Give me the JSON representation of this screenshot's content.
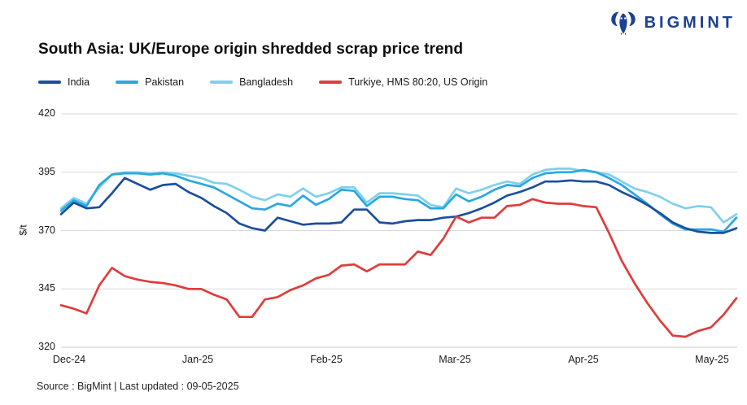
{
  "header": {
    "logo_text": "BIGMINT",
    "title": "South Asia: UK/Europe origin shredded scrap price trend"
  },
  "footer": {
    "source_text": "Source : BigMint | Last updated : 09-05-2025"
  },
  "colors": {
    "brand_navy": "#1d4094",
    "grid": "#d9d9d9",
    "axis_line": "#c9c9c9",
    "axis_text": "#1a1a1a",
    "title_text": "#0d0d0d"
  },
  "chart_data": {
    "type": "line",
    "title": "South Asia: UK/Europe origin shredded scrap price trend",
    "xlabel": "",
    "ylabel": "$/t",
    "ylim": [
      320,
      420
    ],
    "yticks": [
      420,
      395,
      370,
      345,
      320
    ],
    "xticks": [
      "Dec-24",
      "Jan-25",
      "Feb-25",
      "Mar-25",
      "Apr-25",
      "May-25"
    ],
    "grid": "horizontal",
    "legend_position": "top-left",
    "x_note": "daily prices Dec 2024 - 09 May 2025, sampled ~every 3 days",
    "series": [
      {
        "name": "Bangladesh",
        "color": "#7fd0ec",
        "values": [
          379.5,
          384,
          381.5,
          388.5,
          394,
          395,
          395,
          394.5,
          395,
          394.5,
          393.5,
          392.5,
          390.5,
          390,
          387.5,
          384.5,
          383,
          385.5,
          384.5,
          388,
          384.5,
          386,
          388.5,
          388.5,
          382,
          386,
          386,
          385.5,
          385,
          381,
          380,
          388,
          386,
          387.5,
          389.5,
          391,
          390,
          394,
          396,
          396.5,
          396.5,
          395.5,
          395,
          394,
          391,
          388,
          386.5,
          384.5,
          381.5,
          379.5,
          380.5,
          380,
          373.5,
          377
        ]
      },
      {
        "name": "Pakistan",
        "color": "#29a8e0",
        "values": [
          378.5,
          383,
          380.5,
          389.5,
          394,
          394.5,
          394.5,
          394,
          394.5,
          393.5,
          391.5,
          390,
          388.5,
          385.5,
          382.5,
          379.5,
          379,
          381.5,
          380.5,
          385,
          381,
          383.5,
          387.5,
          387,
          380.5,
          384.5,
          384.5,
          383.5,
          383,
          379.5,
          379.5,
          385.5,
          382.5,
          384.5,
          387.5,
          389.5,
          389,
          392.5,
          394.5,
          395,
          395,
          396,
          395,
          392.5,
          389.5,
          385.5,
          381.5,
          377,
          373,
          370.5,
          370.5,
          370.5,
          369.5,
          375.5
        ]
      },
      {
        "name": "India",
        "color": "#1b4f9c",
        "values": [
          377,
          382,
          379.5,
          380,
          386,
          392.5,
          390,
          387.5,
          389.5,
          390,
          386.5,
          384,
          380.5,
          377.5,
          373,
          371,
          370,
          375.5,
          374,
          372.5,
          373,
          373,
          373.5,
          379,
          379,
          373.5,
          373,
          374,
          374.5,
          374.5,
          375.5,
          376,
          377.5,
          379.5,
          382,
          385,
          386.5,
          388.5,
          391,
          391,
          391.5,
          391,
          391,
          389.5,
          386.5,
          384,
          381,
          377.5,
          373.5,
          371,
          369.5,
          369,
          369,
          371
        ]
      },
      {
        "name": "Turkiye, HMS 80:20, US Origin",
        "color": "#e03c3c",
        "values": [
          338,
          336.5,
          334.5,
          346.5,
          354,
          350.5,
          349,
          348,
          347.5,
          346.5,
          345,
          345,
          342.5,
          340.5,
          333,
          333,
          340.5,
          341.5,
          344.5,
          346.5,
          349.5,
          351,
          355,
          355.5,
          352.5,
          355.5,
          355.5,
          355.5,
          361,
          359.5,
          366.5,
          376,
          373.5,
          375.5,
          375.5,
          380.5,
          381,
          383.5,
          382,
          381.5,
          381.5,
          380.5,
          380,
          369,
          357,
          347.5,
          339,
          331.5,
          325,
          324.5,
          327,
          328.5,
          334,
          341
        ]
      }
    ],
    "legend_order": [
      "India",
      "Pakistan",
      "Bangladesh",
      "Turkiye, HMS 80:20, US Origin"
    ]
  }
}
